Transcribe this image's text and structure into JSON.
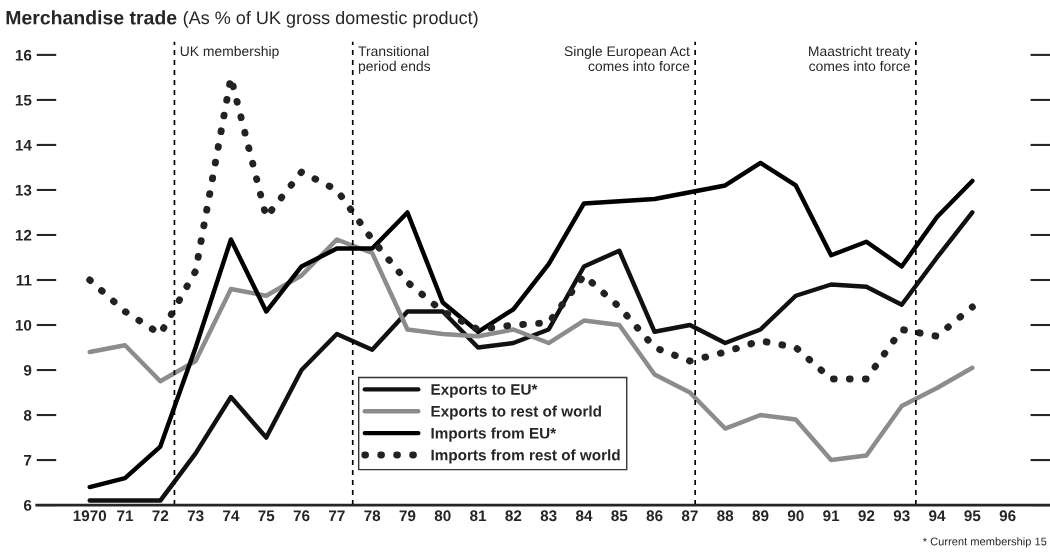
{
  "chart_data": {
    "type": "line",
    "title": "Merchandise trade",
    "subtitle": "(As % of UK gross domestic product)",
    "x": [
      1970,
      1971,
      1972,
      1973,
      1974,
      1975,
      1976,
      1977,
      1978,
      1979,
      1980,
      1981,
      1982,
      1983,
      1984,
      1985,
      1986,
      1987,
      1988,
      1989,
      1990,
      1991,
      1992,
      1993,
      1994,
      1995
    ],
    "series": [
      {
        "name": "Exports to EU*",
        "color": "#111111",
        "line_style": "solid",
        "values": [
          6.1,
          6.1,
          6.1,
          7.15,
          8.4,
          7.5,
          9.0,
          9.8,
          9.45,
          10.3,
          10.3,
          9.5,
          9.6,
          9.9,
          11.3,
          11.65,
          9.85,
          10.0,
          9.6,
          9.9,
          10.65,
          10.9,
          10.85,
          10.45,
          11.5,
          12.5
        ]
      },
      {
        "name": "Exports to rest of world",
        "color": "#8c8c8c",
        "line_style": "solid",
        "values": [
          9.4,
          9.55,
          8.75,
          9.2,
          10.8,
          10.65,
          11.1,
          11.9,
          11.6,
          9.9,
          9.8,
          9.75,
          9.9,
          9.6,
          10.1,
          10.0,
          8.9,
          8.5,
          7.7,
          8.0,
          7.9,
          7.0,
          7.1,
          8.2,
          8.6,
          9.05
        ]
      },
      {
        "name": "Imports from EU*",
        "color": "#000000",
        "line_style": "solid",
        "values": [
          6.4,
          6.6,
          7.3,
          9.5,
          11.9,
          10.3,
          11.3,
          11.7,
          11.7,
          12.5,
          10.5,
          9.85,
          10.35,
          11.35,
          12.7,
          12.75,
          12.8,
          12.95,
          13.1,
          13.6,
          13.1,
          11.55,
          11.85,
          11.3,
          12.4,
          13.2
        ]
      },
      {
        "name": "Imports from rest of world",
        "color": "#222222",
        "line_style": "dotted",
        "values": [
          11.0,
          10.3,
          9.8,
          11.2,
          15.5,
          12.4,
          13.4,
          13.0,
          11.9,
          10.95,
          10.3,
          9.9,
          10.0,
          10.05,
          11.1,
          10.4,
          9.5,
          9.2,
          9.4,
          9.65,
          9.5,
          8.8,
          8.8,
          9.9,
          9.75,
          10.4
        ]
      }
    ],
    "xlim": [
      1968.5,
      1997.2
    ],
    "xticks": [
      {
        "value": 1970,
        "label": "1970"
      },
      {
        "value": 1971,
        "label": "71"
      },
      {
        "value": 1972,
        "label": "72"
      },
      {
        "value": 1973,
        "label": "73"
      },
      {
        "value": 1974,
        "label": "74"
      },
      {
        "value": 1975,
        "label": "75"
      },
      {
        "value": 1976,
        "label": "76"
      },
      {
        "value": 1977,
        "label": "77"
      },
      {
        "value": 1978,
        "label": "78"
      },
      {
        "value": 1979,
        "label": "79"
      },
      {
        "value": 1980,
        "label": "80"
      },
      {
        "value": 1981,
        "label": "81"
      },
      {
        "value": 1982,
        "label": "82"
      },
      {
        "value": 1983,
        "label": "83"
      },
      {
        "value": 1984,
        "label": "84"
      },
      {
        "value": 1985,
        "label": "85"
      },
      {
        "value": 1986,
        "label": "86"
      },
      {
        "value": 1987,
        "label": "87"
      },
      {
        "value": 1988,
        "label": "88"
      },
      {
        "value": 1989,
        "label": "89"
      },
      {
        "value": 1990,
        "label": "90"
      },
      {
        "value": 1991,
        "label": "91"
      },
      {
        "value": 1992,
        "label": "92"
      },
      {
        "value": 1993,
        "label": "93"
      },
      {
        "value": 1994,
        "label": "94"
      },
      {
        "value": 1995,
        "label": "95"
      },
      {
        "value": 1996,
        "label": "96"
      }
    ],
    "ylim": [
      6,
      16.3
    ],
    "yticks": [
      6,
      7,
      8,
      9,
      10,
      11,
      12,
      13,
      14,
      15,
      16
    ],
    "ref_lines": [
      {
        "axis": "x",
        "value": 1972.4,
        "label": "UK membership",
        "line_style": "dashed"
      },
      {
        "axis": "x",
        "value": 1977.45,
        "label": "Transitional\nperiod ends",
        "line_style": "dashed"
      },
      {
        "axis": "x",
        "value": 1987.15,
        "label": "Single European Act\ncomes into force",
        "line_style": "dashed"
      },
      {
        "axis": "x",
        "value": 1993.4,
        "label": "Maastricht treaty\ncomes into force",
        "line_style": "dashed"
      }
    ],
    "annotations": [
      "* Current membership 15"
    ],
    "legend": "bottom",
    "grid": false
  }
}
